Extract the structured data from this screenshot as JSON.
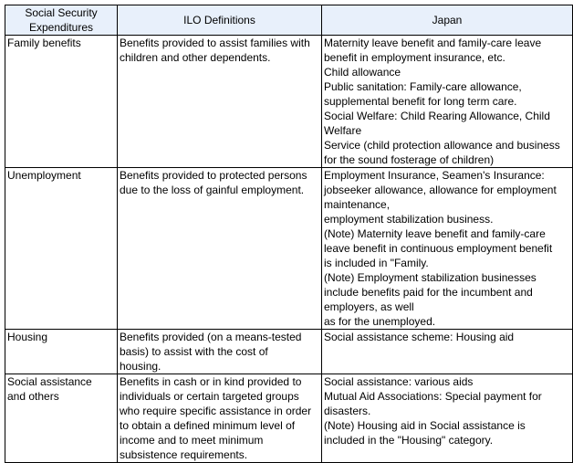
{
  "headers": [
    "Social Security\nExpenditures",
    "ILO Definitions",
    "Japan"
  ],
  "rows": [
    {
      "category": "Family benefits",
      "ilo": "Benefits provided to assist families with\nchildren and other dependents.",
      "japan": "Maternity leave benefit and family-care leave\nbenefit in employment insurance, etc.\nChild allowance\nPublic sanitation: Family-care allowance,\nsupplemental benefit for long term care.\nSocial Welfare: Child Rearing Allowance, Child\nWelfare\nService (child protection allowance and business\nfor the sound fosterage of children)"
    },
    {
      "category": "Unemployment",
      "ilo": "Benefits provided to protected persons\ndue to the loss of gainful employment.",
      "japan": "Employment Insurance, Seamen's Insurance:\njobseeker allowance, allowance for employment\nmaintenance,\nemployment stabilization business.\n(Note) Maternity leave benefit and family-care\nleave benefit in continuous employment benefit\nis included in \"Family.\n(Note) Employment stabilization businesses\ninclude benefits paid for the incumbent and\nemployers, as well\nas for the unemployed."
    },
    {
      "category": "Housing",
      "ilo": "Benefits provided (on a means-tested\nbasis) to assist with the cost of\nhousing.",
      "japan": "Social assistance scheme: Housing aid"
    },
    {
      "category": "Social assistance\nand others",
      "ilo": "Benefits in cash or in kind provided to\nindividuals or certain targeted groups\nwho require specific assistance in order\nto obtain a defined minimum level of\nincome and to meet minimum\nsubsistence requirements.",
      "japan": "Social assistance: various aids\nMutual Aid Associations: Special payment for\ndisasters.\n(Note) Housing aid in Social assistance is\nincluded in the \"Housing\" category."
    }
  ]
}
